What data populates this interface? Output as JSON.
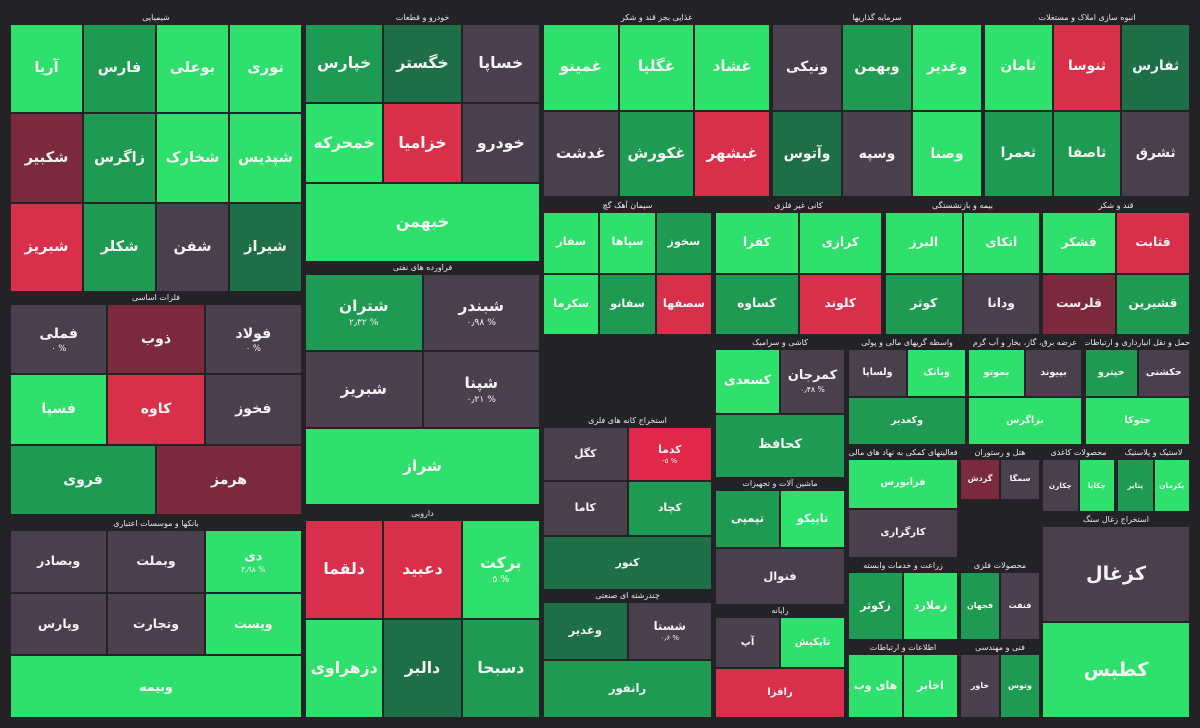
{
  "chart_data": {
    "type": "treemap",
    "sectors": [
      {
        "title": "شیمیایی",
        "stocks": [
          {
            "name": "نوری",
            "color": "#2fe06c"
          },
          {
            "name": "بوعلی",
            "color": "#2fe06c"
          },
          {
            "name": "فارس",
            "color": "#1f9a52"
          },
          {
            "name": "آریا",
            "color": "#2fe06c"
          },
          {
            "name": "شپدیس",
            "color": "#2fe06c"
          },
          {
            "name": "شخارک",
            "color": "#2fe06c"
          },
          {
            "name": "زاگرس",
            "color": "#1f9a52"
          },
          {
            "name": "شکبیر",
            "color": "#7a2a3c"
          },
          {
            "name": "شیراز",
            "color": "#1e6e47"
          },
          {
            "name": "شفن",
            "color": "#4a3f4d"
          },
          {
            "name": "شکلر",
            "color": "#1f9a52"
          },
          {
            "name": "شبریز",
            "color": "#d8304a"
          }
        ]
      },
      {
        "title": "خودرو و قطعات",
        "stocks": [
          {
            "name": "خساپا",
            "color": "#4a3f4d"
          },
          {
            "name": "خگستر",
            "color": "#1e6e47"
          },
          {
            "name": "خپارس",
            "color": "#1f9a52"
          },
          {
            "name": "خودرو",
            "color": "#4a3f4d"
          },
          {
            "name": "خزامیا",
            "color": "#d8304a"
          },
          {
            "name": "خمحرکه",
            "color": "#2fe06c"
          },
          {
            "name": "خبهمن",
            "color": "#2fe06c"
          }
        ]
      },
      {
        "title": "فلزات اساسی",
        "stocks": [
          {
            "name": "فولاد",
            "change": "% ۰",
            "color": "#4a3f4d"
          },
          {
            "name": "ذوب",
            "color": "#7a2a3c"
          },
          {
            "name": "فملی",
            "change": "% ۰",
            "color": "#4a3f4d"
          },
          {
            "name": "فخوز",
            "color": "#4a3f4d"
          },
          {
            "name": "کاوه",
            "color": "#d8304a"
          },
          {
            "name": "فسپا",
            "color": "#2fe06c"
          },
          {
            "name": "هرمز",
            "color": "#7a2a3c"
          },
          {
            "name": "فروی",
            "color": "#1f9a52"
          }
        ]
      },
      {
        "title": "فراورده های نفتی",
        "stocks": [
          {
            "name": "شبندر",
            "change": "% ۰٫۹۸",
            "color": "#4a3f4d"
          },
          {
            "name": "شتران",
            "change": "% ۲٫۳۲",
            "color": "#1f9a52"
          },
          {
            "name": "شپنا",
            "change": "% ۰٫۲۱",
            "color": "#4a3f4d"
          },
          {
            "name": "شبریز",
            "color": "#4a3f4d"
          },
          {
            "name": "شراز",
            "color": "#2fe06c"
          }
        ]
      },
      {
        "title": "بانکها و موسسات اعتباری",
        "stocks": [
          {
            "name": "دی",
            "change": "% ۴٫۹۸",
            "color": "#2fe06c"
          },
          {
            "name": "وبملت",
            "color": "#4a3f4d"
          },
          {
            "name": "وبصادر",
            "color": "#4a3f4d"
          },
          {
            "name": "وپست",
            "color": "#2fe06c"
          },
          {
            "name": "وتجارت",
            "color": "#4a3f4d"
          },
          {
            "name": "وپارس",
            "color": "#4a3f4d"
          },
          {
            "name": "وبیمه",
            "color": "#2fe06c"
          }
        ]
      },
      {
        "title": "دارویی",
        "stocks": [
          {
            "name": "برکت",
            "change": "% ۵",
            "color": "#2fe06c"
          },
          {
            "name": "دعبید",
            "color": "#d8304a"
          },
          {
            "name": "دلقما",
            "color": "#d8304a"
          },
          {
            "name": "دسبحا",
            "color": "#1f9a52"
          },
          {
            "name": "دالبر",
            "color": "#1e6e47"
          },
          {
            "name": "دزهراوی",
            "color": "#2fe06c"
          }
        ]
      },
      {
        "title": "غذایی بجز قند و شکر",
        "stocks": [
          {
            "name": "غشاد",
            "color": "#2fe06c"
          },
          {
            "name": "غگلپا",
            "color": "#2fe06c"
          },
          {
            "name": "غمینو",
            "color": "#2fe06c"
          },
          {
            "name": "غبشهر",
            "color": "#d8304a"
          },
          {
            "name": "غکورش",
            "color": "#1f9a52"
          },
          {
            "name": "غدشت",
            "color": "#4a3f4d"
          }
        ]
      },
      {
        "title": "سرمایه گذاریها",
        "stocks": [
          {
            "name": "وغدیر",
            "color": "#2fe06c"
          },
          {
            "name": "وبهمن",
            "color": "#1f9a52"
          },
          {
            "name": "ونیکی",
            "color": "#4a3f4d"
          },
          {
            "name": "وصنا",
            "color": "#2fe06c"
          },
          {
            "name": "وسپه",
            "color": "#4a3f4d"
          },
          {
            "name": "وآتوس",
            "color": "#1e6e47"
          }
        ]
      },
      {
        "title": "انبوه سازی املاک و مستغلات",
        "stocks": [
          {
            "name": "ثفارس",
            "color": "#1e6e47"
          },
          {
            "name": "ثنوسا",
            "color": "#d8304a"
          },
          {
            "name": "ثامان",
            "color": "#2fe06c"
          },
          {
            "name": "ثشرق",
            "color": "#4a3f4d"
          },
          {
            "name": "ثاصفا",
            "color": "#1f9a52"
          },
          {
            "name": "ثعمرا",
            "color": "#1f9a52"
          }
        ]
      },
      {
        "title": "سیمان آهک گچ",
        "stocks": [
          {
            "name": "سخوز",
            "color": "#1f9a52"
          },
          {
            "name": "سپاها",
            "color": "#2fe06c"
          },
          {
            "name": "سفار",
            "color": "#2fe06c"
          },
          {
            "name": "سصفها",
            "color": "#d8304a"
          },
          {
            "name": "سفانو",
            "color": "#1f9a52"
          },
          {
            "name": "سکرما",
            "color": "#2fe06c"
          }
        ]
      },
      {
        "title": "کانی غیر فلزی",
        "stocks": [
          {
            "name": "کرازی",
            "color": "#2fe06c"
          },
          {
            "name": "کفرا",
            "color": "#2fe06c"
          },
          {
            "name": "کلوند",
            "color": "#d8304a"
          },
          {
            "name": "کساوه",
            "color": "#1f9a52"
          }
        ]
      },
      {
        "title": "بیمه و بازنشستگی",
        "stocks": [
          {
            "name": "اتکای",
            "color": "#2fe06c"
          },
          {
            "name": "البرز",
            "color": "#2fe06c"
          },
          {
            "name": "ودانا",
            "color": "#4a3f4d"
          },
          {
            "name": "کوثر",
            "color": "#1f9a52"
          }
        ]
      },
      {
        "title": "قند و شکر",
        "stocks": [
          {
            "name": "قثابت",
            "color": "#d8304a"
          },
          {
            "name": "قشکر",
            "color": "#2fe06c"
          },
          {
            "name": "قشیرین",
            "color": "#1f9a52"
          },
          {
            "name": "قلرست",
            "color": "#7a2a3c"
          }
        ]
      },
      {
        "title": "کاشی و سرامیک",
        "stocks": [
          {
            "name": "کمرجان",
            "change": "% ۰٫۴۸",
            "color": "#4a3f4d"
          },
          {
            "name": "کسعدی",
            "color": "#2fe06c"
          },
          {
            "name": "کحافظ",
            "color": "#1f9a52"
          }
        ]
      },
      {
        "title": "استخراج کانه های فلزی",
        "stocks": [
          {
            "name": "کدما",
            "change": "% ۵-",
            "color": "#e1284a"
          },
          {
            "name": "کگل",
            "color": "#4a3f4d"
          },
          {
            "name": "کچاد",
            "color": "#1f9a52"
          },
          {
            "name": "کاما",
            "color": "#4a3f4d"
          },
          {
            "name": "کنور",
            "color": "#1e6e47"
          }
        ]
      },
      {
        "title": "ماشین آلات و تجهیزات",
        "stocks": [
          {
            "name": "تاپیکو",
            "color": "#2fe06c"
          },
          {
            "name": "تپمپی",
            "color": "#1f9a52"
          },
          {
            "name": "فنوال",
            "color": "#4a3f4d"
          }
        ]
      },
      {
        "title": "چندرشته ای صنعتی",
        "stocks": [
          {
            "name": "شستا",
            "change": "% ۰٫۶",
            "color": "#4a3f4d"
          },
          {
            "name": "وغدیر",
            "color": "#1e6e47"
          },
          {
            "name": "رانفور",
            "color": "#1f9a52"
          }
        ]
      },
      {
        "title": "رایانه",
        "stocks": [
          {
            "name": "تاپکیش",
            "color": "#2fe06c"
          },
          {
            "name": "آپ",
            "color": "#4a3f4d"
          },
          {
            "name": "رافزا",
            "color": "#d8304a"
          }
        ]
      },
      {
        "title": "واسطه گریهای مالی و پولی",
        "stocks": [
          {
            "name": "وبانک",
            "color": "#2fe06c"
          },
          {
            "name": "ولساپا",
            "color": "#4a3f4d"
          },
          {
            "name": "وکغدیر",
            "color": "#1f9a52"
          }
        ]
      },
      {
        "title": "عرضه برق، گاز، بخار و آب گرم",
        "stocks": [
          {
            "name": "بپیوند",
            "color": "#4a3f4d"
          },
          {
            "name": "بموتو",
            "color": "#2fe06c"
          },
          {
            "name": "بزاگرس",
            "color": "#2fe06c"
          }
        ]
      },
      {
        "title": "حمل و نقل انبارداری و ارتباطات",
        "stocks": [
          {
            "name": "حکشتی",
            "color": "#4a3f4d"
          },
          {
            "name": "حپترو",
            "color": "#1f9a52"
          },
          {
            "name": "حتوکا",
            "color": "#2fe06c"
          }
        ]
      },
      {
        "title": "فعالیتهای کمکی به نهاد های مالی",
        "stocks": [
          {
            "name": "فرابورس",
            "color": "#2fe06c"
          },
          {
            "name": "کارگزاری",
            "color": "#4a3f4d"
          }
        ]
      },
      {
        "title": "هتل و رستوران",
        "stocks": [
          {
            "name": "سمگا",
            "color": "#4a3f4d"
          },
          {
            "name": "گردش",
            "color": "#7a2a3c"
          }
        ]
      },
      {
        "title": "محصولات کاغذی",
        "stocks": [
          {
            "name": "چکاپا",
            "color": "#2fe06c"
          },
          {
            "name": "چکارن",
            "color": "#4a3f4d"
          }
        ]
      },
      {
        "title": "لاستیک و پلاستیک",
        "stocks": [
          {
            "name": "پکرمان",
            "color": "#2fe06c"
          },
          {
            "name": "پتایر",
            "color": "#1f9a52"
          }
        ]
      },
      {
        "title": "زراعت و خدمات وابسته",
        "stocks": [
          {
            "name": "زملارد",
            "color": "#2fe06c"
          },
          {
            "name": "زکوثر",
            "color": "#1f9a52"
          }
        ]
      },
      {
        "title": "محصولات فلزی",
        "stocks": [
          {
            "name": "فنفت",
            "color": "#4a3f4d"
          },
          {
            "name": "فجهان",
            "color": "#1f9a52"
          }
        ]
      },
      {
        "title": "اطلاعات و ارتباطات",
        "stocks": [
          {
            "name": "اخابر",
            "color": "#2fe06c"
          },
          {
            "name": "های وب",
            "color": "#2fe06c"
          }
        ]
      },
      {
        "title": "فنی و مهندسی",
        "stocks": [
          {
            "name": "وتوس",
            "color": "#1f9a52"
          },
          {
            "name": "خاور",
            "color": "#4a3f4d"
          }
        ]
      },
      {
        "title": "استخراج زغال سنگ",
        "stocks": [
          {
            "name": "کزغال",
            "color": "#4a3f4d"
          },
          {
            "name": "کطبس",
            "color": "#2fe06c"
          }
        ]
      }
    ]
  }
}
